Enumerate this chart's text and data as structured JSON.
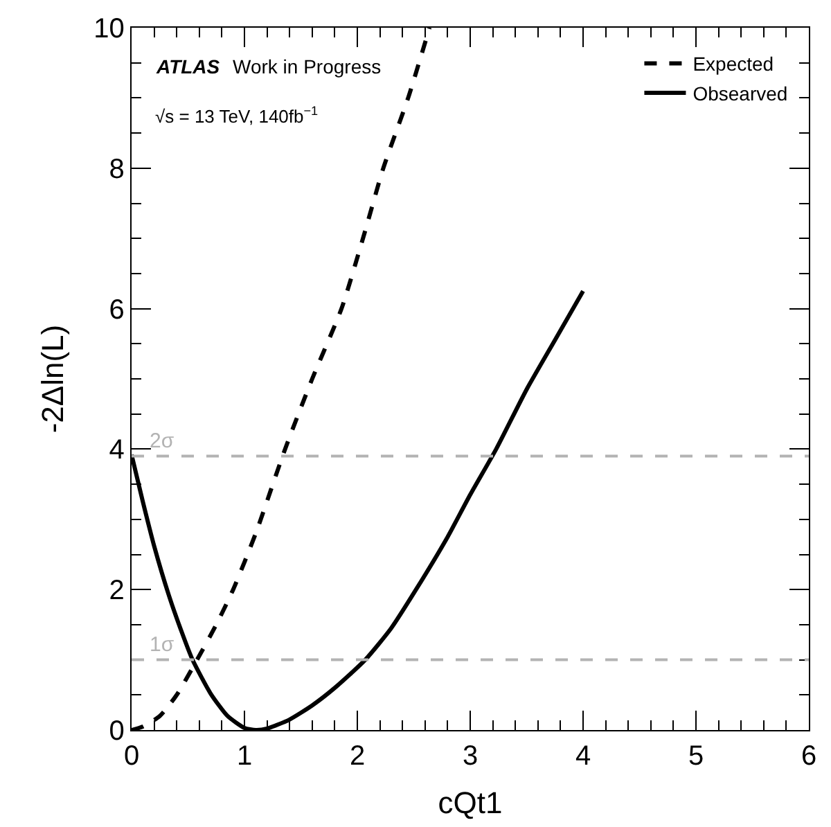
{
  "chart_data": {
    "type": "line",
    "xlabel": "cQt1",
    "ylabel": "-2Δln(L)",
    "xlim": [
      0,
      6
    ],
    "xticks": [
      0,
      1,
      2,
      3,
      4,
      5,
      6
    ],
    "ylim": [
      0,
      10
    ],
    "yticks": [
      0,
      2,
      4,
      6,
      8,
      10
    ],
    "legend": "top right",
    "marker": "none",
    "annotations": [
      "ATLAS",
      "Work in Progress",
      "√s = 13 TeV, 140fb$^{−1}$"
    ],
    "ref_lines": [
      {
        "axis": "y",
        "value": 3.9,
        "label": "2σ",
        "color": "#b3b3b3",
        "line_style": "dashed"
      },
      {
        "axis": "y",
        "value": 1.0,
        "label": "1σ",
        "color": "#b3b3b3",
        "line_style": "dashed"
      }
    ],
    "series": [
      {
        "name": "Expected",
        "color": "#000000",
        "line_style": "dashed",
        "x": [
          0,
          0.1,
          0.25,
          0.4,
          0.58,
          0.75,
          0.9,
          1.1,
          1.36,
          1.6,
          1.86,
          2.05,
          2.23,
          2.45,
          2.64
        ],
        "values": [
          0,
          0.05,
          0.2,
          0.5,
          1.0,
          1.5,
          2.0,
          2.8,
          4.0,
          5.0,
          6.0,
          7.0,
          8.0,
          9.0,
          10.0
        ]
      },
      {
        "name": "Obsearved",
        "color": "#000000",
        "line_style": "solid",
        "x": [
          0,
          0.1,
          0.2,
          0.33,
          0.45,
          0.54,
          0.7,
          0.85,
          1.0,
          1.1,
          1.2,
          1.4,
          1.6,
          1.8,
          2.07,
          2.3,
          2.52,
          2.8,
          3.0,
          3.23,
          3.5,
          3.75,
          4.0
        ],
        "values": [
          3.92,
          3.25,
          2.62,
          1.92,
          1.37,
          1.0,
          0.52,
          0.2,
          0.03,
          0,
          0.02,
          0.15,
          0.35,
          0.6,
          1.0,
          1.45,
          2.0,
          2.75,
          3.35,
          4.0,
          4.85,
          5.55,
          6.25
        ]
      }
    ]
  }
}
